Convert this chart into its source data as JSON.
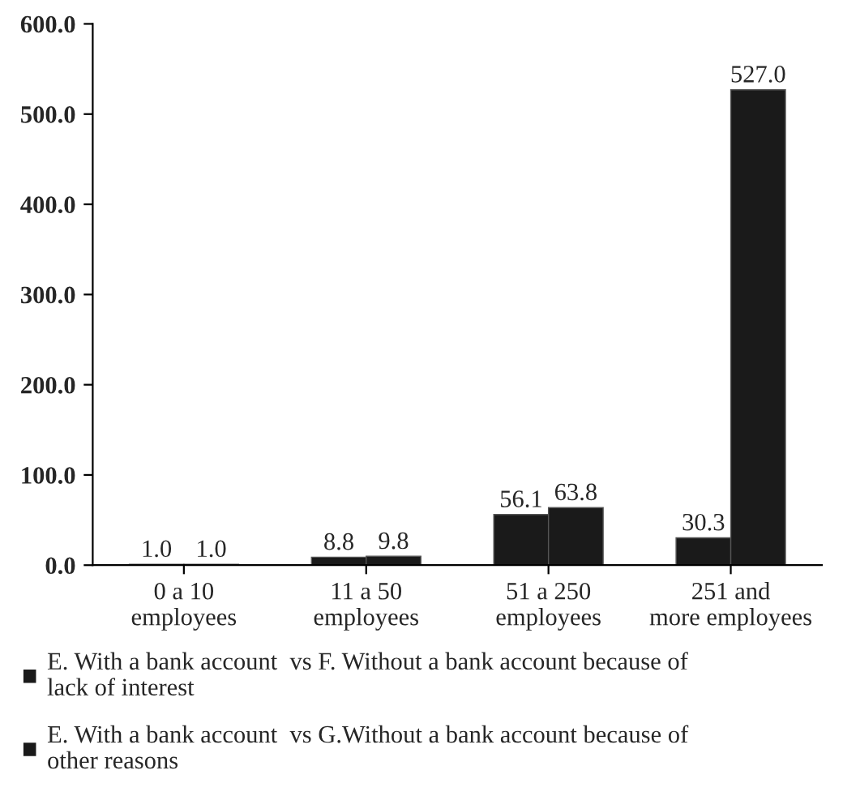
{
  "chart_data": {
    "type": "bar",
    "categories": [
      "0 a 10\nemployees",
      "11 a 50\nemployees",
      "51 a 250\nemployees",
      "251 and\nmore employees"
    ],
    "series": [
      {
        "name": "E. With a bank account  vs F. Without a bank account because of\nlack of interest",
        "color": "#1a1a1a",
        "values": [
          1.0,
          8.8,
          56.1,
          30.3
        ],
        "value_labels": [
          "1.0",
          "8.8",
          "56.1",
          "30.3"
        ]
      },
      {
        "name": "E. With a bank account  vs G.Without a bank account because of\nother reasons",
        "color": "#1a1a1a",
        "values": [
          1.0,
          9.8,
          63.8,
          527.0
        ],
        "value_labels": [
          "1.0",
          "9.8",
          "63.8",
          "527.0"
        ]
      }
    ],
    "ylim": [
      0,
      600
    ],
    "yticks": [
      {
        "value": 0,
        "label": "0.0"
      },
      {
        "value": 100,
        "label": "100.0"
      },
      {
        "value": 200,
        "label": "200.0"
      },
      {
        "value": 300,
        "label": "300.0"
      },
      {
        "value": 400,
        "label": "400.0"
      },
      {
        "value": 500,
        "label": "500.0"
      },
      {
        "value": 600,
        "label": "600.0"
      }
    ],
    "grid": false,
    "legend": "bottom"
  }
}
